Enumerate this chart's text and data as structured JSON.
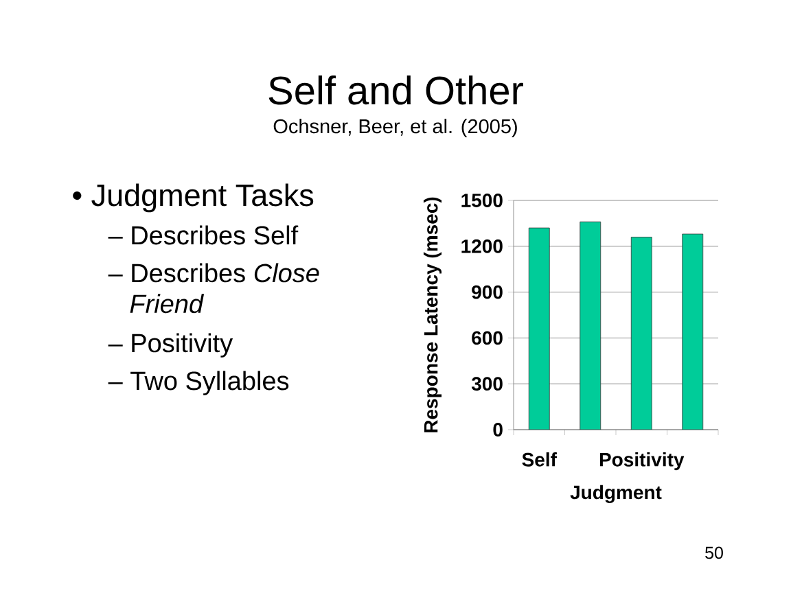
{
  "chart_data": {
    "type": "bar",
    "title": "Self and Other",
    "subtitle": "Ochsner, Beer, et al. (2005)",
    "categories": [
      "Self",
      null,
      "Positivity",
      null
    ],
    "values": [
      1320,
      1360,
      1260,
      1280
    ],
    "color": "#00cc99",
    "xlabel": "Judgment",
    "ylabel": "Response Latency (msec)",
    "ylim": [
      0,
      1500
    ],
    "yticks": [
      0,
      300,
      600,
      900,
      1200,
      1500
    ],
    "grid": "y",
    "annotations": [
      "• Judgment Tasks",
      "– Describes Self",
      "– Describes *Close Friend*",
      "– Positivity",
      "– Two Syllables",
      "50"
    ]
  }
}
